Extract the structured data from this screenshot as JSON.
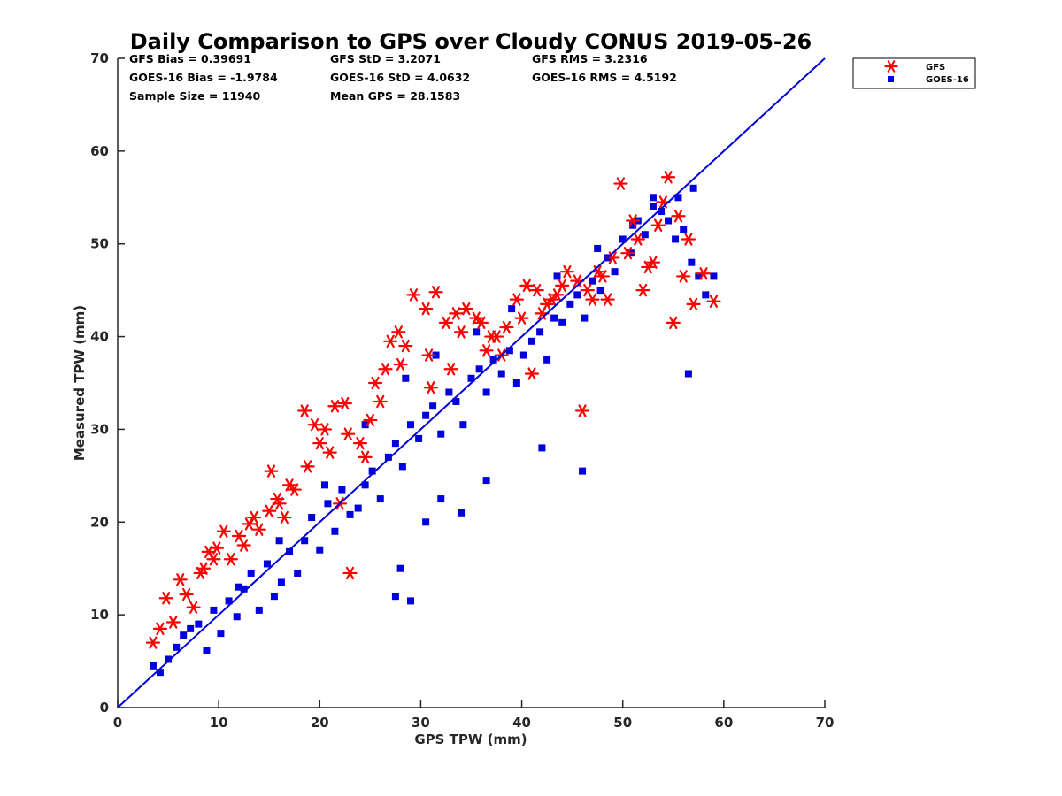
{
  "chart_data": {
    "type": "scatter",
    "title": "Daily Comparison to GPS over Cloudy CONUS 2019-05-26",
    "xlabel": "GPS TPW (mm)",
    "ylabel": "Measured TPW (mm)",
    "xlim": [
      0,
      70
    ],
    "ylim": [
      0,
      70
    ],
    "xticks": [
      "0",
      "10",
      "20",
      "30",
      "40",
      "50",
      "60",
      "70"
    ],
    "yticks": [
      "0",
      "10",
      "20",
      "30",
      "40",
      "50",
      "60",
      "70"
    ],
    "grid": false,
    "legend_position": "outside top-right",
    "stats": {
      "row1": [
        "GFS Bias = 0.39691",
        "GFS StD = 3.2071",
        "GFS RMS = 3.2316"
      ],
      "row2": [
        "GOES-16 Bias = -1.9784",
        "GOES-16 StD = 4.0632",
        "GOES-16 RMS = 4.5192"
      ],
      "row3": [
        "Sample Size = 11940",
        "Mean GPS = 28.1583"
      ]
    },
    "reference_line": {
      "x": [
        0,
        70
      ],
      "y": [
        0,
        70
      ],
      "color": "#0000dd"
    },
    "series": [
      {
        "name": "GFS",
        "marker": "asterisk",
        "color": "#ff0000",
        "x": [
          3.5,
          4.2,
          4.8,
          5.5,
          6.2,
          6.8,
          7.5,
          8.2,
          9.0,
          9.8,
          10.5,
          11.2,
          12.0,
          13.0,
          14.0,
          15.0,
          15.8,
          16.5,
          17.5,
          18.5,
          19.5,
          20.5,
          21.5,
          22.5,
          23.0,
          24.0,
          25.5,
          26.5,
          27.0,
          27.8,
          28.5,
          29.3,
          30.5,
          31.5,
          32.5,
          33.5,
          34.5,
          35.5,
          36.5,
          37.5,
          38.5,
          39.5,
          40.5,
          41.5,
          42.5,
          43.5,
          44.5,
          45.5,
          46.0,
          47.0,
          48.0,
          49.0,
          49.8,
          50.5,
          51.5,
          52.5,
          53.5,
          54.5,
          55.5,
          56.0,
          57.0,
          58.0,
          59.0,
          9.5,
          12.5,
          16.0,
          18.8,
          22.8,
          24.5,
          28.0,
          30.8,
          33.0,
          36.0,
          40.0,
          44.0,
          48.5,
          52.0,
          55.0,
          15.2,
          20.0,
          25.0,
          34.0,
          42.0,
          46.5,
          53.0,
          56.5,
          8.5,
          13.5,
          17.0,
          21.0,
          26.0,
          31.0,
          37.0,
          43.0,
          47.5,
          51.0,
          54.0,
          22.0,
          38.0,
          41.0
        ],
        "y": [
          7.0,
          8.5,
          11.8,
          9.2,
          13.8,
          12.2,
          10.8,
          14.5,
          16.8,
          17.2,
          19.0,
          16.0,
          18.5,
          19.8,
          19.2,
          21.2,
          22.5,
          20.5,
          23.5,
          32.0,
          30.5,
          30.0,
          32.5,
          32.8,
          14.5,
          28.5,
          35.0,
          36.5,
          39.5,
          40.5,
          39.0,
          44.5,
          43.0,
          44.8,
          41.5,
          42.5,
          43.0,
          42.0,
          38.5,
          40.0,
          41.0,
          44.0,
          45.5,
          45.0,
          43.5,
          44.5,
          47.0,
          46.0,
          32.0,
          44.0,
          46.5,
          48.5,
          56.5,
          49.0,
          50.5,
          47.5,
          52.0,
          57.2,
          53.0,
          46.5,
          43.5,
          46.8,
          43.8,
          16.0,
          17.5,
          22.0,
          26.0,
          29.5,
          27.0,
          37.0,
          38.0,
          36.5,
          41.5,
          42.0,
          45.5,
          44.0,
          45.0,
          41.5,
          25.5,
          28.5,
          31.0,
          40.5,
          42.5,
          45.0,
          48.0,
          50.5,
          15.0,
          20.5,
          24.0,
          27.5,
          33.0,
          34.5,
          40.0,
          44.0,
          47.0,
          52.5,
          54.5,
          22.0,
          38.0,
          36.0
        ]
      },
      {
        "name": "GOES-16",
        "marker": "square",
        "color": "#0000dd",
        "x": [
          3.5,
          4.2,
          5.0,
          5.8,
          6.5,
          7.2,
          8.0,
          8.8,
          9.5,
          10.2,
          11.0,
          11.8,
          12.5,
          13.2,
          14.0,
          14.8,
          15.5,
          16.2,
          17.0,
          17.8,
          18.5,
          19.2,
          20.0,
          20.8,
          21.5,
          22.2,
          23.0,
          23.8,
          24.5,
          25.2,
          26.0,
          26.8,
          27.5,
          28.2,
          29.0,
          29.8,
          30.5,
          31.2,
          32.0,
          32.8,
          33.5,
          34.2,
          35.0,
          35.8,
          36.5,
          37.2,
          38.0,
          38.8,
          39.5,
          40.2,
          41.0,
          41.8,
          42.5,
          43.2,
          44.0,
          44.8,
          45.5,
          46.2,
          47.0,
          47.8,
          48.5,
          49.2,
          50.0,
          50.8,
          51.5,
          52.2,
          53.0,
          53.8,
          54.5,
          55.2,
          56.0,
          56.8,
          57.5,
          58.2,
          59.0,
          12.0,
          16.0,
          20.5,
          24.5,
          28.5,
          31.5,
          35.5,
          39.0,
          43.5,
          47.5,
          51.0,
          55.5,
          27.5,
          28.0,
          29.0,
          30.5,
          32.0,
          34.0,
          36.5,
          42.0,
          46.0,
          53.0,
          57.0,
          56.5
        ],
        "y": [
          4.5,
          3.8,
          5.2,
          6.5,
          7.8,
          8.5,
          9.0,
          6.2,
          10.5,
          8.0,
          11.5,
          9.8,
          12.8,
          14.5,
          10.5,
          15.5,
          12.0,
          13.5,
          16.8,
          14.5,
          18.0,
          20.5,
          17.0,
          22.0,
          19.0,
          23.5,
          20.8,
          21.5,
          24.0,
          25.5,
          22.5,
          27.0,
          28.5,
          26.0,
          30.5,
          29.0,
          31.5,
          32.5,
          29.5,
          34.0,
          33.0,
          30.5,
          35.5,
          36.5,
          34.0,
          37.5,
          36.0,
          38.5,
          35.0,
          38.0,
          39.5,
          40.5,
          37.5,
          42.0,
          41.5,
          43.5,
          44.5,
          42.0,
          46.0,
          45.0,
          48.5,
          47.0,
          50.5,
          49.0,
          52.5,
          51.0,
          54.0,
          53.5,
          52.5,
          50.5,
          51.5,
          48.0,
          46.5,
          44.5,
          46.5,
          13.0,
          18.0,
          24.0,
          30.5,
          35.5,
          38.0,
          40.5,
          43.0,
          46.5,
          49.5,
          52.0,
          55.0,
          12.0,
          15.0,
          11.5,
          20.0,
          22.5,
          21.0,
          24.5,
          28.0,
          25.5,
          55.0,
          56.0,
          36.0
        ]
      }
    ]
  },
  "legend": {
    "entries": [
      {
        "label": "GFS",
        "marker": "asterisk",
        "color": "#ff0000"
      },
      {
        "label": "GOES-16",
        "marker": "square",
        "color": "#0000dd"
      }
    ]
  }
}
